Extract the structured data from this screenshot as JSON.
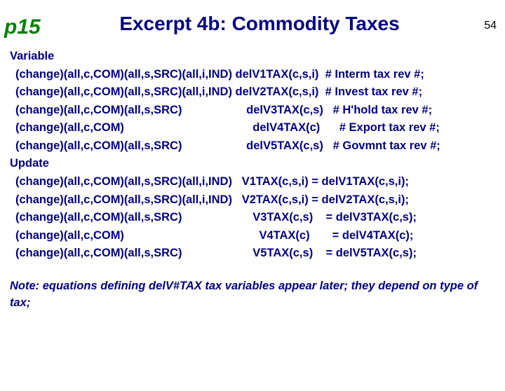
{
  "page_label": "p15",
  "page_number": "54",
  "title": "Excerpt 4b: Commodity Taxes",
  "section1_header": "Variable",
  "variable_lines": [
    "(change)(all,c,COM)(all,s,SRC)(all,i,IND) delV1TAX(c,s,i)  # Interm tax rev #;",
    "(change)(all,c,COM)(all,s,SRC)(all,i,IND) delV2TAX(c,s,i)  # Invest tax rev #;",
    "(change)(all,c,COM)(all,s,SRC)                    delV3TAX(c,s)   # H'hold tax rev #;",
    "(change)(all,c,COM)                                        delV4TAX(c)      # Export tax rev #;",
    "(change)(all,c,COM)(all,s,SRC)                    delV5TAX(c,s)   # Govmnt tax rev #;"
  ],
  "section2_header": "Update",
  "update_lines": [
    "(change)(all,c,COM)(all,s,SRC)(all,i,IND)   V1TAX(c,s,i) = delV1TAX(c,s,i);",
    "(change)(all,c,COM)(all,s,SRC)(all,i,IND)   V2TAX(c,s,i) = delV2TAX(c,s,i);",
    "(change)(all,c,COM)(all,s,SRC)                      V3TAX(c,s)    = delV3TAX(c,s);",
    "(change)(all,c,COM)                                          V4TAX(c)       = delV4TAX(c);",
    "(change)(all,c,COM)(all,s,SRC)                      V5TAX(c,s)    = delV5TAX(c,s);"
  ],
  "note": "Note: equations defining delV#TAX tax variables appear later; they depend on type of tax;",
  "colors": {
    "page_label": "#008000",
    "text": "#000080",
    "background": "#ffffff"
  },
  "fonts": {
    "title_size_pt": 28,
    "body_size_pt": 16.5,
    "page_label_size_pt": 30,
    "page_number_size_pt": 16
  }
}
